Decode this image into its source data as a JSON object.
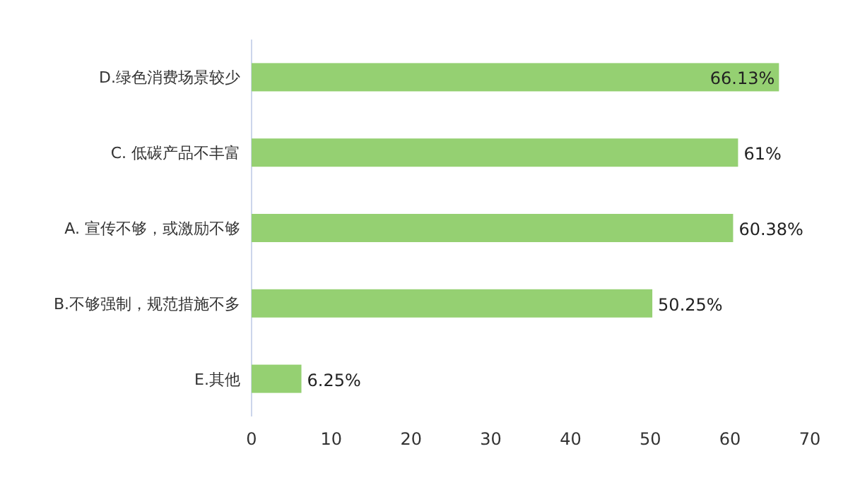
{
  "chart_data": {
    "type": "bar",
    "orientation": "horizontal",
    "categories": [
      "D.绿色消费场景较少",
      "C. 低碳产品不丰富",
      "A. 宣传不够，或激励不够",
      "B.不够强制，规范措施不多",
      "E.其他"
    ],
    "values": [
      66.13,
      61,
      60.38,
      50.25,
      6.25
    ],
    "value_labels": [
      "66.13%",
      "61%",
      "60.38%",
      "50.25%",
      "6.25%"
    ],
    "color": "#95d072",
    "xlim": [
      0,
      70
    ],
    "xticks": [
      0,
      10,
      20,
      30,
      40,
      50,
      60,
      70
    ],
    "grid": false
  }
}
